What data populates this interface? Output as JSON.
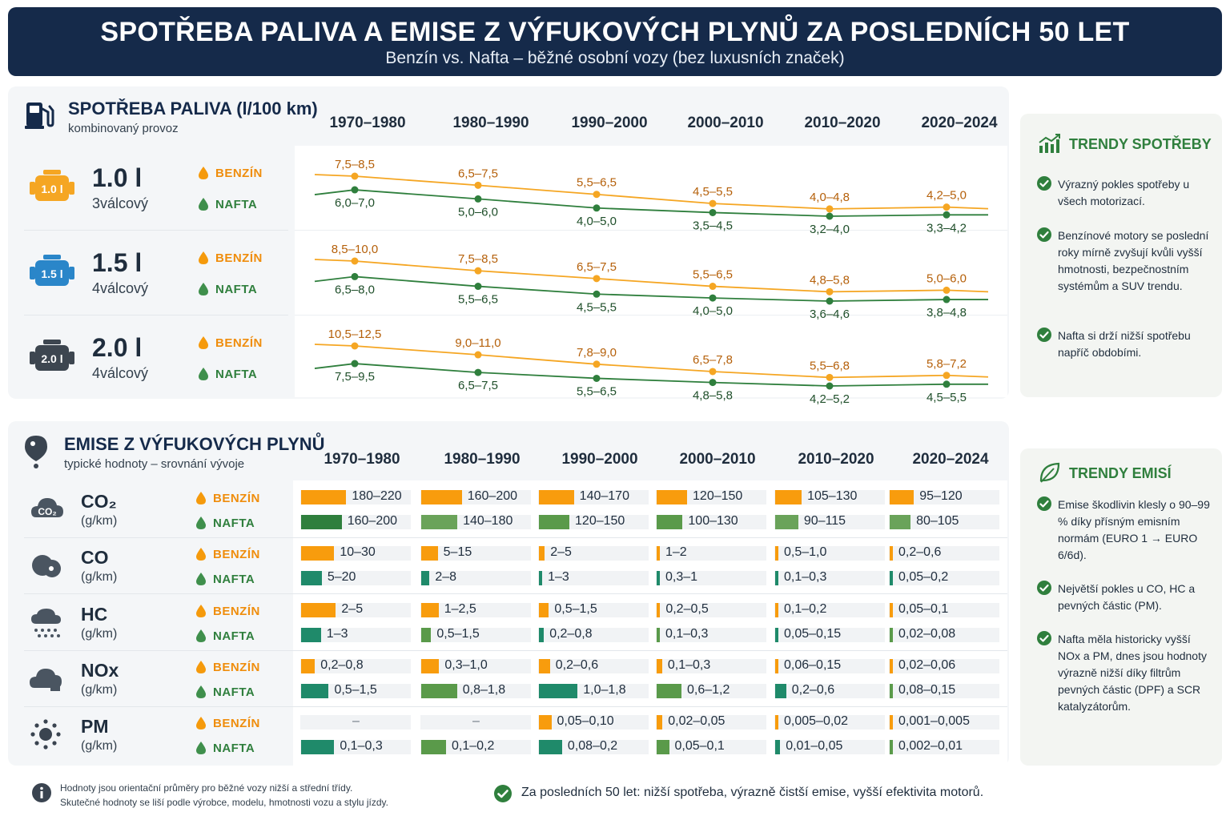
{
  "header": {
    "title": "SPOTŘEBA PALIVA A EMISE Z VÝFUKOVÝCH PLYNŮ ZA POSLEDNÍCH 50 LET",
    "subtitle": "Benzín vs. Nafta – běžné osobní vozy (bez luxusních značek)"
  },
  "fuel": {
    "title": "SPOTŘEBA PALIVA (l/100 km)",
    "subtitle": "kombinovaný provoz",
    "icon": "fuel-pump-icon"
  },
  "emissions": {
    "title": "EMISE Z VÝFUKOVÝCH PLYNŮ",
    "subtitle": "typické hodnoty – srovnání vývoje",
    "icon": "location-pin-icon"
  },
  "labels": {
    "benzin": "BENZÍN",
    "nafta": "NAFTA"
  },
  "colors": {
    "navy": "#152a4a",
    "benzin": "#f59a0c",
    "benzin_bar": "#f89c0d",
    "nafta": "#2f7f3d",
    "nafta_bar": "#3f8f4c"
  },
  "chart_data": [
    {
      "type": "line",
      "periods": [
        "1970–1980",
        "1980–1990",
        "1990–2000",
        "2000–2010",
        "2010–2020",
        "2020–2024"
      ],
      "engines": [
        {
          "size": "1.0 l",
          "badge": "1.0 l",
          "cylinders": "3válcový",
          "color": "#f5a623",
          "benzin": {
            "labels": [
              "7,5–8,5",
              "6,5–7,5",
              "5,5–6,5",
              "4,5–5,5",
              "4,0–4,8",
              "4,2–5,0"
            ],
            "values": [
              8.0,
              7.0,
              6.0,
              5.0,
              4.4,
              4.6
            ]
          },
          "nafta": {
            "labels": [
              "6,0–7,0",
              "5,0–6,0",
              "4,0–5,0",
              "3,5–4,5",
              "3,2–4,0",
              "3,3–4,2"
            ],
            "values": [
              6.5,
              5.5,
              4.5,
              4.0,
              3.6,
              3.75
            ]
          }
        },
        {
          "size": "1.5 l",
          "badge": "1.5 l",
          "cylinders": "4válcový",
          "color": "#2a86c9",
          "benzin": {
            "labels": [
              "8,5–10,0",
              "7,5–8,5",
              "6,5–7,5",
              "5,5–6,5",
              "4,8–5,8",
              "5,0–6,0"
            ],
            "values": [
              9.25,
              8.0,
              7.0,
              6.0,
              5.3,
              5.5
            ]
          },
          "nafta": {
            "labels": [
              "6,5–8,0",
              "5,5–6,5",
              "4,5–5,5",
              "4,0–5,0",
              "3,6–4,6",
              "3,8–4,8"
            ],
            "values": [
              7.25,
              6.0,
              5.0,
              4.5,
              4.1,
              4.3
            ]
          }
        },
        {
          "size": "2.0 l",
          "badge": "2.0 l",
          "cylinders": "4válcový",
          "color": "#3d4650",
          "benzin": {
            "labels": [
              "10,5–12,5",
              "9,0–11,0",
              "7,8–9,0",
              "6,5–7,8",
              "5,5–6,8",
              "5,8–7,2"
            ],
            "values": [
              11.5,
              10.0,
              8.4,
              7.15,
              6.15,
              6.5
            ]
          },
          "nafta": {
            "labels": [
              "7,5–9,5",
              "6,5–7,5",
              "5,5–6,5",
              "4,8–5,8",
              "4,2–5,2",
              "4,5–5,5"
            ],
            "values": [
              8.5,
              7.0,
              6.0,
              5.3,
              4.7,
              5.0
            ]
          }
        }
      ]
    },
    {
      "type": "bar",
      "periods": [
        "1970–1980",
        "1980–1990",
        "1990–2000",
        "2000–2010",
        "2010–2020",
        "2020–2024"
      ],
      "pollutants": [
        {
          "name": "CO₂",
          "unit": "(g/km)",
          "icon": "co2-cloud-icon",
          "icon_text": "CO₂",
          "max": 220,
          "benzin": {
            "labels": [
              "180–220",
              "160–200",
              "140–170",
              "120–150",
              "105–130",
              "95–120"
            ],
            "values": [
              200,
              180,
              155,
              135,
              117.5,
              107.5
            ]
          },
          "nafta": {
            "labels": [
              "160–200",
              "140–180",
              "120–150",
              "100–130",
              "90–115",
              "80–105"
            ],
            "values": [
              180,
              160,
              135,
              115,
              102.5,
              92.5
            ]
          }
        },
        {
          "name": "CO",
          "unit": "(g/km)",
          "icon": "smoke-cloud-icon",
          "max": 30,
          "benzin": {
            "labels": [
              "10–30",
              "5–15",
              "2–5",
              "1–2",
              "0,5–1,0",
              "0,2–0,6"
            ],
            "values": [
              20,
              10,
              3.5,
              1.5,
              0.75,
              0.4
            ]
          },
          "nafta": {
            "labels": [
              "5–20",
              "2–8",
              "1–3",
              "0,3–1",
              "0,1–0,3",
              "0,05–0,2"
            ],
            "values": [
              12.5,
              5,
              2,
              0.65,
              0.2,
              0.125
            ]
          }
        },
        {
          "name": "HC",
          "unit": "(g/km)",
          "icon": "drizzle-cloud-icon",
          "max": 5,
          "benzin": {
            "labels": [
              "2–5",
              "1–2,5",
              "0,5–1,5",
              "0,2–0,5",
              "0,1–0,2",
              "0,05–0,1"
            ],
            "values": [
              3.5,
              1.75,
              1.0,
              0.35,
              0.15,
              0.075
            ]
          },
          "nafta": {
            "labels": [
              "1–3",
              "0,5–1,5",
              "0,2–0,8",
              "0,1–0,3",
              "0,05–0,15",
              "0,02–0,08"
            ],
            "values": [
              2,
              1.0,
              0.5,
              0.2,
              0.1,
              0.05
            ]
          }
        },
        {
          "name": "NOx",
          "unit": "(g/km)",
          "icon": "factory-cloud-icon",
          "max": 1.8,
          "benzin": {
            "labels": [
              "0,2–0,8",
              "0,3–1,0",
              "0,2–0,6",
              "0,1–0,3",
              "0,06–0,15",
              "0,02–0,06"
            ],
            "values": [
              0.5,
              0.65,
              0.4,
              0.2,
              0.105,
              0.04
            ]
          },
          "nafta": {
            "labels": [
              "0,5–1,5",
              "0,8–1,8",
              "1,0–1,8",
              "0,6–1,2",
              "0,2–0,6",
              "0,08–0,15"
            ],
            "values": [
              1.0,
              1.3,
              1.4,
              0.9,
              0.4,
              0.115
            ]
          }
        },
        {
          "name": "PM",
          "unit": "(g/km)",
          "icon": "particles-icon",
          "max": 0.3,
          "benzin": {
            "labels": [
              "–",
              "–",
              "0,05–0,10",
              "0,02–0,05",
              "0,005–0,02",
              "0,001–0,005"
            ],
            "values": [
              null,
              null,
              0.075,
              0.035,
              0.0125,
              0.003
            ]
          },
          "nafta": {
            "labels": [
              "0,1–0,3",
              "0,1–0,2",
              "0,08–0,2",
              "0,05–0,1",
              "0,01–0,05",
              "0,002–0,01"
            ],
            "values": [
              0.2,
              0.15,
              0.14,
              0.075,
              0.03,
              0.006
            ]
          }
        }
      ]
    }
  ],
  "trends_fuel": {
    "title": "TRENDY SPOTŘEBY",
    "icon": "chart-growth-icon",
    "items": [
      "Výrazný pokles spotřeby u všech motorizací.",
      "Benzínové motory se poslední roky mírně zvyšují kvůli vyšší hmotnosti, bezpečnostním systémům a SUV trendu.",
      "Nafta si drží nižší spotřebu napříč obdobími."
    ]
  },
  "trends_emissions": {
    "title": "TRENDY EMISÍ",
    "icon": "leaf-icon",
    "items": [
      "Emise škodlivin klesly o 90–99 % díky přísným emisním normám (EURO 1 → EURO 6/6d).",
      "Největší pokles u CO, HC a pevných částic (PM).",
      "Nafta měla historicky vyšší NOx a PM, dnes jsou hodnoty výrazně nižší díky filtrům pevných částic (DPF) a SCR katalyzátorům."
    ]
  },
  "footer": {
    "note_line1": "Hodnoty jsou orientační průměry pro běžné vozy nižší a střední třídy.",
    "note_line2": "Skutečné hodnoty se liší podle výrobce, modelu, hmotnosti vozu a stylu jízdy.",
    "summary": "Za posledních 50 let: nižší spotřeba, výrazně čistší emise, vyšší efektivita motorů."
  }
}
